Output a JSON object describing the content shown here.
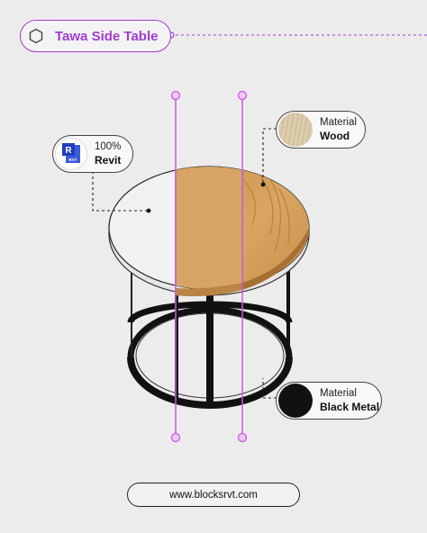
{
  "header": {
    "title": "Tawa Side Table",
    "icon": "hexagon-icon"
  },
  "callouts": {
    "revit": {
      "percent": "100%",
      "label": "Revit",
      "logo_text": "RVT",
      "logo_letter": "R"
    },
    "wood": {
      "caption": "Material",
      "label": "Wood"
    },
    "metal": {
      "caption": "Material",
      "label": "Black Metal"
    }
  },
  "footer": {
    "url": "www.blocksrvt.com"
  },
  "colors": {
    "accent": "#a13bd0",
    "wood": "#d3a262",
    "metal": "#111111",
    "background": "#ececec"
  }
}
